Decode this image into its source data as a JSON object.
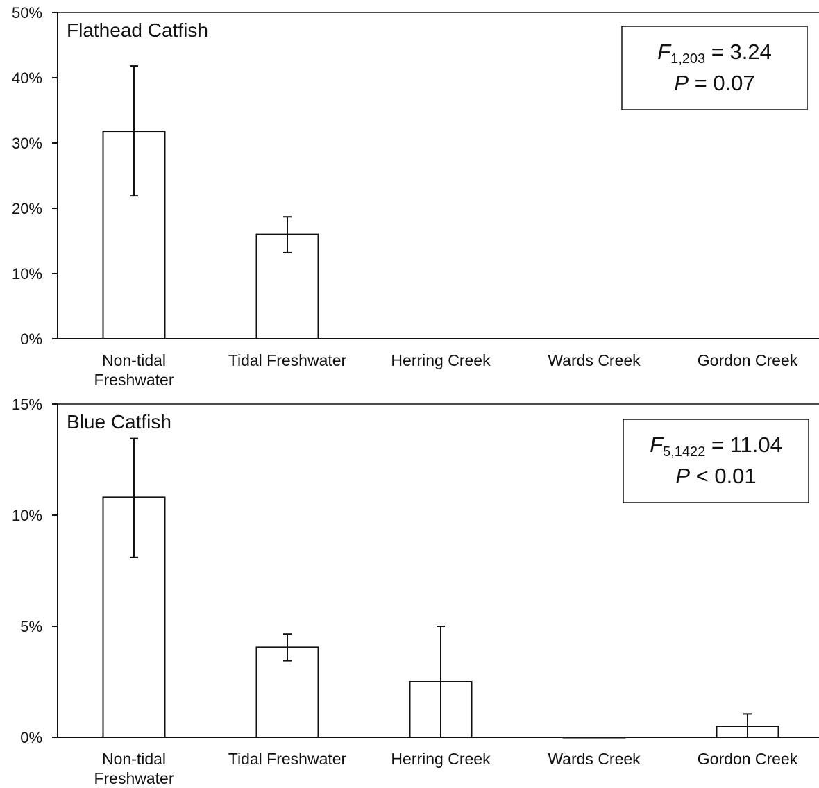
{
  "chart_data": [
    {
      "type": "bar",
      "title": "Flathead Catfish",
      "categories": [
        "Non-tidal Freshwater",
        "Tidal Freshwater",
        "Herring Creek",
        "Wards Creek",
        "Gordon Creek"
      ],
      "category_lines": [
        [
          "Non-tidal",
          "Freshwater"
        ],
        [
          "Tidal Freshwater"
        ],
        [
          "Herring Creek"
        ],
        [
          "Wards Creek"
        ],
        [
          "Gordon Creek"
        ]
      ],
      "values": [
        31.8,
        16.0,
        null,
        null,
        null
      ],
      "error_low": [
        21.9,
        13.2,
        null,
        null,
        null
      ],
      "error_high": [
        41.8,
        18.7,
        null,
        null,
        null
      ],
      "ylim": [
        0,
        50
      ],
      "yticks": [
        0,
        10,
        20,
        30,
        40,
        50
      ],
      "ytick_labels": [
        "0%",
        "10%",
        "20%",
        "30%",
        "40%",
        "50%"
      ],
      "xlabel": "",
      "ylabel": "",
      "grid": false,
      "stat_box": {
        "f_symbol": "F",
        "f_subscript": "1,203",
        "f_rest": " = 3.24",
        "p_symbol": "P",
        "p_rest": " = 0.07"
      }
    },
    {
      "type": "bar",
      "title": "Blue Catfish",
      "categories": [
        "Non-tidal Freshwater",
        "Tidal Freshwater",
        "Herring Creek",
        "Wards Creek",
        "Gordon Creek"
      ],
      "category_lines": [
        [
          "Non-tidal",
          "Freshwater"
        ],
        [
          "Tidal Freshwater"
        ],
        [
          "Herring Creek"
        ],
        [
          "Wards Creek"
        ],
        [
          "Gordon Creek"
        ]
      ],
      "values": [
        10.8,
        4.05,
        2.5,
        0.0,
        0.5
      ],
      "error_low": [
        8.1,
        3.45,
        0.0,
        null,
        0.0
      ],
      "error_high": [
        13.45,
        4.65,
        5.0,
        null,
        1.05
      ],
      "ylim": [
        0,
        15
      ],
      "yticks": [
        0,
        5,
        10,
        15
      ],
      "ytick_labels": [
        "0%",
        "5%",
        "10%",
        "15%"
      ],
      "xlabel": "",
      "ylabel": "",
      "grid": false,
      "stat_box": {
        "f_symbol": "F",
        "f_subscript": "5,1422",
        "f_rest": " = 11.04",
        "p_symbol": "P",
        "p_rest": " < 0.01"
      }
    }
  ]
}
